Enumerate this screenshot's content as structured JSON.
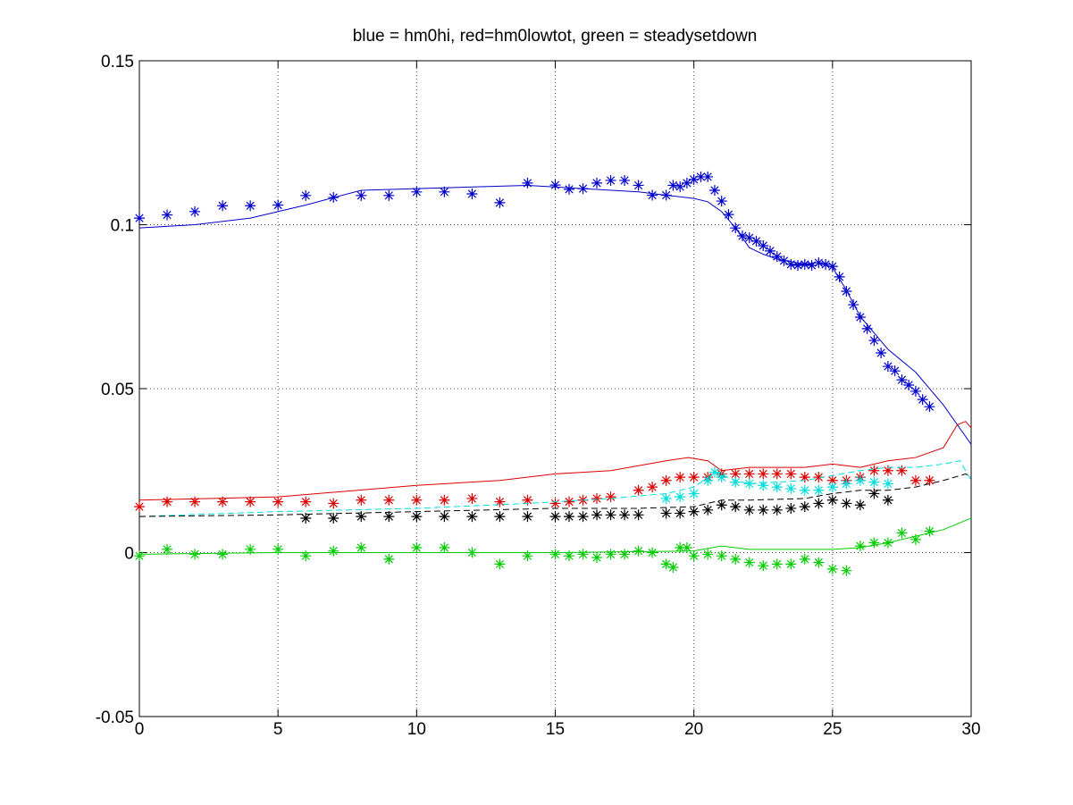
{
  "chart_data": {
    "type": "line",
    "title": "blue = hm0hi, red=hm0lowtot, green = steadysetdown",
    "xlim": [
      0,
      30
    ],
    "xticks": [
      0,
      5,
      10,
      15,
      20,
      25,
      30
    ],
    "ylim": [
      -0.05,
      0.15
    ],
    "yticks": [
      -0.05,
      0,
      0.05,
      0.1,
      0.15
    ],
    "grid": true,
    "series": [
      {
        "color": "#0000cc",
        "style": "line",
        "x": [
          0,
          2,
          4,
          6,
          8,
          10,
          12,
          14,
          16,
          18,
          19,
          20,
          20.5,
          21,
          21.5,
          22,
          22.5,
          23,
          24,
          24.5,
          25,
          25.5,
          26,
          26.5,
          27,
          28,
          29,
          30
        ],
        "values": [
          0.099,
          0.1,
          0.102,
          0.106,
          0.1105,
          0.111,
          0.1115,
          0.112,
          0.111,
          0.11,
          0.109,
          0.108,
          0.107,
          0.104,
          0.099,
          0.093,
          0.091,
          0.0895,
          0.088,
          0.0885,
          0.087,
          0.08,
          0.072,
          0.067,
          0.062,
          0.055,
          0.045,
          0.033
        ]
      },
      {
        "color": "#0000cc",
        "style": "markers",
        "x": [
          0,
          1,
          2,
          3,
          4,
          5,
          6,
          7,
          8,
          9,
          10,
          11,
          12,
          13,
          14,
          15,
          15.5,
          16,
          16.5,
          17,
          17.5,
          18,
          18.5,
          19,
          19.25,
          19.5,
          19.75,
          20,
          20.25,
          20.5,
          20.75,
          21,
          21.25,
          21.5,
          21.75,
          22,
          22.25,
          22.5,
          22.75,
          23,
          23.25,
          23.5,
          23.75,
          24,
          24.25,
          24.5,
          24.75,
          25,
          25.25,
          25.5,
          25.75,
          26,
          26.25,
          26.5,
          26.75,
          27,
          27.25,
          27.5,
          27.75,
          28,
          28.25,
          28.5
        ],
        "values": [
          0.102,
          0.103,
          0.104,
          0.1058,
          0.1058,
          0.106,
          0.1089,
          0.1083,
          0.1089,
          0.1089,
          0.11,
          0.11,
          0.1094,
          0.1067,
          0.1127,
          0.1121,
          0.1108,
          0.111,
          0.1127,
          0.1135,
          0.1135,
          0.112,
          0.109,
          0.109,
          0.112,
          0.1116,
          0.1127,
          0.1138,
          0.1146,
          0.1146,
          0.1105,
          0.1072,
          0.1031,
          0.099,
          0.0966,
          0.096,
          0.095,
          0.0936,
          0.092,
          0.0903,
          0.089,
          0.0879,
          0.0876,
          0.0879,
          0.0876,
          0.0884,
          0.0879,
          0.0873,
          0.0841,
          0.0797,
          0.0756,
          0.0718,
          0.0683,
          0.0647,
          0.0609,
          0.0568,
          0.0554,
          0.0527,
          0.0511,
          0.0492,
          0.0467,
          0.0445
        ]
      },
      {
        "color": "#dd0000",
        "style": "line",
        "x": [
          0,
          5,
          10,
          13,
          15,
          17,
          19,
          19.8,
          20.5,
          21,
          22,
          24,
          25,
          26,
          27,
          28,
          29,
          29.5,
          29.8,
          30
        ],
        "values": [
          0.016,
          0.017,
          0.0205,
          0.022,
          0.024,
          0.025,
          0.028,
          0.029,
          0.028,
          0.025,
          0.026,
          0.026,
          0.027,
          0.026,
          0.028,
          0.029,
          0.032,
          0.039,
          0.04,
          0.038
        ]
      },
      {
        "color": "#dd0000",
        "style": "markers",
        "x": [
          0,
          1,
          2,
          3,
          4,
          5,
          6,
          7,
          8,
          9,
          10,
          11,
          12,
          13,
          14,
          15,
          15.5,
          16,
          16.5,
          17,
          18,
          18.5,
          19,
          19.5,
          20,
          20.5,
          21,
          21.5,
          22,
          22.5,
          23,
          23.5,
          24,
          24.5,
          25,
          25.5,
          26,
          26.5,
          27,
          27.5,
          28,
          28.5
        ],
        "values": [
          0.014,
          0.0155,
          0.0155,
          0.0155,
          0.0155,
          0.0155,
          0.0155,
          0.015,
          0.016,
          0.016,
          0.016,
          0.016,
          0.0165,
          0.0155,
          0.016,
          0.015,
          0.0155,
          0.016,
          0.0165,
          0.017,
          0.019,
          0.02,
          0.022,
          0.023,
          0.023,
          0.023,
          0.024,
          0.024,
          0.024,
          0.024,
          0.024,
          0.024,
          0.023,
          0.023,
          0.022,
          0.022,
          0.023,
          0.025,
          0.025,
          0.025,
          0.022,
          0.022
        ]
      },
      {
        "color": "#00dddd",
        "style": "dashed",
        "x": [
          0,
          5,
          10,
          14,
          17,
          19,
          20,
          20.8,
          21.5,
          22,
          24,
          25,
          26,
          27,
          28,
          29,
          29.6,
          30
        ],
        "values": [
          0.011,
          0.0125,
          0.0135,
          0.015,
          0.0165,
          0.018,
          0.02,
          0.0245,
          0.022,
          0.021,
          0.022,
          0.0235,
          0.025,
          0.026,
          0.026,
          0.027,
          0.028,
          0.022
        ]
      },
      {
        "color": "#00dddd",
        "style": "markers",
        "x": [
          19,
          19.5,
          20,
          20.5,
          20.75,
          21,
          21.5,
          22,
          22.5,
          23,
          23.5,
          24,
          24.5,
          25,
          25.5,
          26,
          26.5,
          27
        ],
        "values": [
          0.0165,
          0.017,
          0.018,
          0.022,
          0.0245,
          0.023,
          0.0215,
          0.021,
          0.0205,
          0.02,
          0.0195,
          0.019,
          0.019,
          0.02,
          0.021,
          0.022,
          0.0215,
          0.021
        ]
      },
      {
        "color": "#000000",
        "style": "dashed",
        "x": [
          0,
          5,
          10,
          15,
          18,
          20,
          21,
          22,
          24,
          25,
          26,
          27,
          28,
          29,
          29.8,
          30
        ],
        "values": [
          0.011,
          0.0115,
          0.0125,
          0.0135,
          0.0135,
          0.014,
          0.016,
          0.016,
          0.0165,
          0.018,
          0.019,
          0.019,
          0.02,
          0.022,
          0.024,
          0.023
        ]
      },
      {
        "color": "#000000",
        "style": "markers",
        "x": [
          6,
          7,
          8,
          9,
          10,
          11,
          12,
          13,
          14,
          15,
          15.5,
          16,
          16.5,
          17,
          17.5,
          18,
          19,
          19.5,
          20,
          20.5,
          21,
          21.5,
          22,
          22.5,
          23,
          23.5,
          24,
          24.5,
          25,
          25.5,
          26,
          26.5,
          27
        ],
        "values": [
          0.0105,
          0.0105,
          0.011,
          0.011,
          0.011,
          0.011,
          0.011,
          0.011,
          0.011,
          0.011,
          0.011,
          0.011,
          0.0115,
          0.0115,
          0.0115,
          0.0115,
          0.012,
          0.012,
          0.0125,
          0.013,
          0.0145,
          0.014,
          0.013,
          0.013,
          0.013,
          0.0135,
          0.014,
          0.015,
          0.016,
          0.015,
          0.0145,
          0.018,
          0.016
        ]
      },
      {
        "color": "#00cc00",
        "style": "line",
        "x": [
          0,
          5,
          10,
          15,
          20,
          21,
          22,
          24,
          25,
          26,
          27,
          28,
          29,
          30
        ],
        "values": [
          -0.0005,
          0,
          0,
          0,
          0.0005,
          0.002,
          0.001,
          0.001,
          0.001,
          0.0015,
          0.003,
          0.005,
          0.007,
          0.0105
        ]
      },
      {
        "color": "#00cc00",
        "style": "markers",
        "x": [
          0,
          1,
          2,
          3,
          4,
          5,
          6,
          7,
          8,
          9,
          10,
          11,
          12,
          13,
          14,
          15,
          15.5,
          16,
          16.5,
          17,
          17.5,
          18,
          18.5,
          19,
          19.25,
          19.5,
          19.75,
          20,
          20.5,
          21,
          21.5,
          22,
          22.5,
          23,
          23.5,
          24,
          24.5,
          25,
          25.5,
          26,
          26.5,
          27,
          27.5,
          28,
          28.5
        ],
        "values": [
          -0.001,
          0.001,
          -0.0005,
          -0.0005,
          0.001,
          0.001,
          -0.001,
          0.0005,
          0.0015,
          -0.002,
          0.0015,
          0.0015,
          0,
          -0.0035,
          -0.001,
          -0.0005,
          -0.001,
          -0.0005,
          -0.0015,
          -0.0005,
          -0.0005,
          0.0005,
          0,
          -0.0035,
          -0.0045,
          0.0015,
          0.0015,
          -0.001,
          -0.0005,
          -0.001,
          -0.002,
          -0.003,
          -0.004,
          -0.0035,
          -0.0035,
          -0.002,
          -0.003,
          -0.005,
          -0.0055,
          0.002,
          0.003,
          0.003,
          0.006,
          0.004,
          0.0065
        ]
      }
    ]
  }
}
